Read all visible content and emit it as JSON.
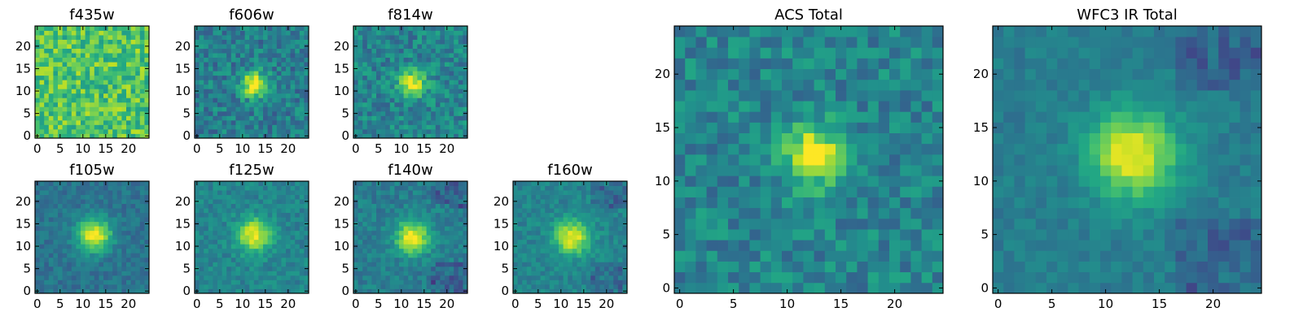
{
  "figure": {
    "colormap": "viridis",
    "colors": {
      "low": "#440154",
      "mid": "#21918c",
      "high": "#fde725"
    }
  },
  "chart_data": [
    {
      "type": "heatmap",
      "title": "f435w",
      "grid": [
        25,
        25
      ],
      "xlim": [
        0,
        24
      ],
      "ylim": [
        0,
        24
      ],
      "xticks": [
        0,
        5,
        10,
        15,
        20
      ],
      "yticks": [
        0,
        5,
        10,
        15,
        20
      ],
      "source": null,
      "noise": 0.18,
      "background": 0.72
    },
    {
      "type": "heatmap",
      "title": "f606w",
      "grid": [
        25,
        25
      ],
      "xlim": [
        0,
        24
      ],
      "ylim": [
        0,
        24
      ],
      "xticks": [
        0,
        5,
        10,
        15,
        20
      ],
      "yticks": [
        0,
        5,
        10,
        15,
        20
      ],
      "source": {
        "x": 12.5,
        "y": 11.5,
        "sigma": 2.0,
        "peak": 1.0
      },
      "noise": 0.15,
      "background": 0.42
    },
    {
      "type": "heatmap",
      "title": "f814w",
      "grid": [
        25,
        25
      ],
      "xlim": [
        0,
        24
      ],
      "ylim": [
        0,
        24
      ],
      "xticks": [
        0,
        5,
        10,
        15,
        20
      ],
      "yticks": [
        0,
        5,
        10,
        15,
        20
      ],
      "source": {
        "x": 12.5,
        "y": 11.5,
        "sigma": 2.0,
        "peak": 1.0
      },
      "noise": 0.15,
      "background": 0.45
    },
    {
      "type": "heatmap",
      "title": "f105w",
      "grid": [
        25,
        25
      ],
      "xlim": [
        0,
        24
      ],
      "ylim": [
        0,
        24
      ],
      "xticks": [
        0,
        5,
        10,
        15,
        20
      ],
      "yticks": [
        0,
        5,
        10,
        15,
        20
      ],
      "source": {
        "x": 12.5,
        "y": 12.5,
        "sigma": 2.6,
        "peak": 1.0
      },
      "noise": 0.08,
      "background": 0.38
    },
    {
      "type": "heatmap",
      "title": "f125w",
      "grid": [
        25,
        25
      ],
      "xlim": [
        0,
        24
      ],
      "ylim": [
        0,
        24
      ],
      "xticks": [
        0,
        5,
        10,
        15,
        20
      ],
      "yticks": [
        0,
        5,
        10,
        15,
        20
      ],
      "source": {
        "x": 12.5,
        "y": 12.5,
        "sigma": 2.6,
        "peak": 1.0
      },
      "noise": 0.09,
      "background": 0.45
    },
    {
      "type": "heatmap",
      "title": "f140w",
      "grid": [
        25,
        25
      ],
      "xlim": [
        0,
        24
      ],
      "ylim": [
        0,
        24
      ],
      "xticks": [
        0,
        5,
        10,
        15,
        20
      ],
      "yticks": [
        0,
        5,
        10,
        15,
        20
      ],
      "source": {
        "x": 12.5,
        "y": 12.0,
        "sigma": 2.6,
        "peak": 1.0
      },
      "noise": 0.09,
      "background": 0.42
    },
    {
      "type": "heatmap",
      "title": "f160w",
      "grid": [
        25,
        25
      ],
      "xlim": [
        0,
        24
      ],
      "ylim": [
        0,
        24
      ],
      "xticks": [
        0,
        5,
        10,
        15,
        20
      ],
      "yticks": [
        0,
        5,
        10,
        15,
        20
      ],
      "source": {
        "x": 12.5,
        "y": 12.0,
        "sigma": 2.6,
        "peak": 1.0
      },
      "noise": 0.08,
      "background": 0.45
    },
    {
      "type": "heatmap",
      "title": "ACS Total",
      "grid": [
        25,
        25
      ],
      "xlim": [
        0,
        24
      ],
      "ylim": [
        0,
        24
      ],
      "xticks": [
        0,
        5,
        10,
        15,
        20
      ],
      "yticks": [
        0,
        5,
        10,
        15,
        20
      ],
      "source": {
        "x": 12.5,
        "y": 12.5,
        "sigma": 2.0,
        "peak": 1.0
      },
      "noise": 0.14,
      "background": 0.45
    },
    {
      "type": "heatmap",
      "title": "WFC3 IR Total",
      "grid": [
        25,
        25
      ],
      "xlim": [
        0,
        24
      ],
      "ylim": [
        0,
        24
      ],
      "xticks": [
        0,
        5,
        10,
        15,
        20
      ],
      "yticks": [
        0,
        5,
        10,
        15,
        20
      ],
      "source": {
        "x": 12.5,
        "y": 12.5,
        "sigma": 2.8,
        "peak": 1.0
      },
      "noise": 0.06,
      "background": 0.42
    }
  ]
}
